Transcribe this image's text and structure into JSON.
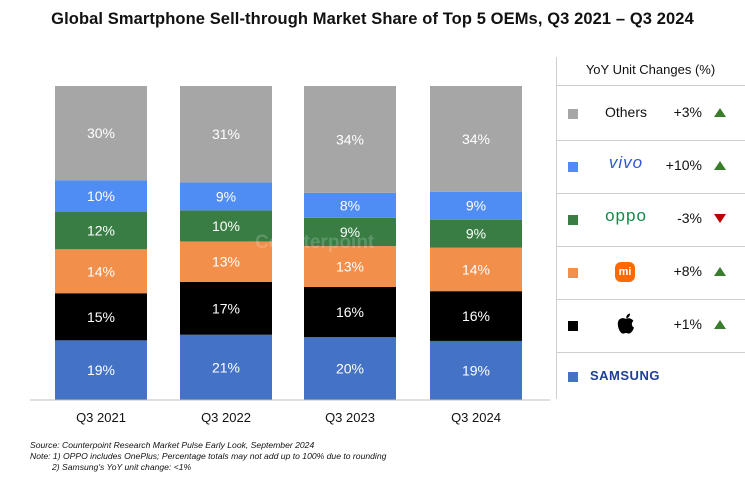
{
  "title": "Global Smartphone Sell-through Market Share of Top 5 OEMs, Q3 2021 – Q3 2024",
  "legend": {
    "header": "YoY Unit Changes (%)",
    "rows": [
      {
        "brand": "Others",
        "change": "+3%",
        "direction": "up",
        "color": "#a6a6a6"
      },
      {
        "brand": "vivo",
        "change": "+10%",
        "direction": "up",
        "color": "#4f8df5"
      },
      {
        "brand": "oppo",
        "change": "-3%",
        "direction": "down",
        "color": "#3a7d44"
      },
      {
        "brand": "mi",
        "change": "+8%",
        "direction": "up",
        "color": "#f28f4b"
      },
      {
        "brand": "apple-logo",
        "change": "+1%",
        "direction": "up",
        "color": "#000000"
      },
      {
        "brand": "SAMSUNG",
        "change": "",
        "direction": "",
        "color": "#4472c4"
      }
    ]
  },
  "watermark": "Counterpoint",
  "notes": {
    "source": "Source: Counterpoint Research Market Pulse Early Look, September 2024",
    "note1": "Note: 1) OPPO includes OnePlus; Percentage totals may not add up to 100% due to rounding",
    "note2": "2) Samsung's YoY unit change: <1%"
  },
  "chart_data": {
    "type": "bar",
    "stacked": true,
    "title": "Global Smartphone Sell-through Market Share of Top 5 OEMs, Q3 2021 – Q3 2024",
    "categories": [
      "Q3 2021",
      "Q3 2022",
      "Q3 2023",
      "Q3 2024"
    ],
    "series": [
      {
        "name": "Samsung",
        "color": "#4472c4",
        "text_color": "#ffffff",
        "values": [
          19,
          21,
          20,
          19
        ]
      },
      {
        "name": "Apple",
        "color": "#000000",
        "text_color": "#ffffff",
        "values": [
          15,
          17,
          16,
          16
        ]
      },
      {
        "name": "Xiaomi",
        "color": "#f28f4b",
        "text_color": "#ffffff",
        "values": [
          14,
          13,
          13,
          14
        ]
      },
      {
        "name": "OPPO",
        "color": "#3a7d44",
        "text_color": "#ffffff",
        "values": [
          12,
          10,
          9,
          9
        ]
      },
      {
        "name": "vivo",
        "color": "#4f8df5",
        "text_color": "#ffffff",
        "values": [
          10,
          9,
          8,
          9
        ]
      },
      {
        "name": "Others",
        "color": "#a6a6a6",
        "text_color": "#ffffff",
        "values": [
          30,
          31,
          34,
          34
        ]
      }
    ],
    "data_labels": [
      [
        "19%",
        "21%",
        "20%",
        "19%"
      ],
      [
        "15%",
        "17%",
        "16%",
        "16%"
      ],
      [
        "14%",
        "13%",
        "13%",
        "14%"
      ],
      [
        "12%",
        "10%",
        "9%",
        "9%"
      ],
      [
        "10%",
        "9%",
        "8%",
        "9%"
      ],
      [
        "30%",
        "31%",
        "34%",
        "34%"
      ]
    ],
    "unit": "%",
    "grid": false,
    "legend_position": "right"
  }
}
